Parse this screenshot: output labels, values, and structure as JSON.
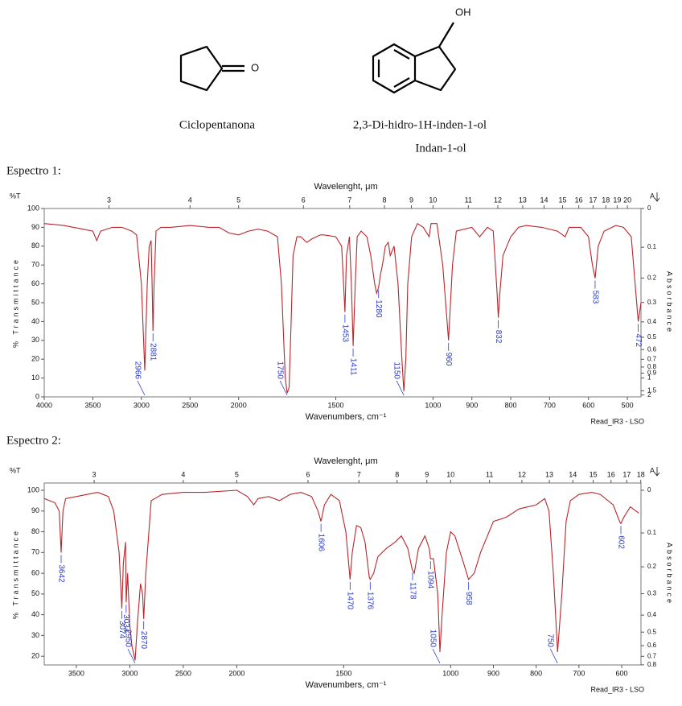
{
  "compounds": [
    {
      "name": "Ciclopentanona",
      "atoms": [
        "O"
      ]
    },
    {
      "name": "2,3-Di-hidro-1H-inden-1-ol",
      "alt_name": "Indan-1-ol",
      "atoms": [
        "OH"
      ]
    }
  ],
  "chart_data": [
    {
      "type": "line",
      "title": "Espectro 1:",
      "x2_label": "Wavelenght, μm",
      "x_label": "Wavenumbers, cm⁻¹",
      "y_label": "% Transmittance",
      "y_unit": "%T",
      "y2_label": "Absorbance",
      "y2_unit": "A",
      "footer": "Read_IR3 - LSO",
      "xlim": [
        4000,
        465
      ],
      "xscale_breaks": [
        2000,
        1000
      ],
      "xticks": [
        4000,
        3500,
        3000,
        2500,
        2000,
        1500,
        1000,
        900,
        800,
        700,
        600,
        500
      ],
      "x2ticks": [
        3,
        4,
        5,
        6,
        7,
        8,
        9,
        10,
        11,
        12,
        13,
        14,
        15,
        16,
        17,
        18,
        19,
        20
      ],
      "ylim": [
        0,
        100
      ],
      "yticks": [
        0,
        10,
        20,
        30,
        40,
        50,
        60,
        70,
        80,
        90,
        100
      ],
      "y2ticks": [
        0,
        0.1,
        0.2,
        0.3,
        0.4,
        0.5,
        0.6,
        0.7,
        0.8,
        0.9,
        1,
        1.5,
        2
      ],
      "x": [
        4000,
        3800,
        3600,
        3500,
        3460,
        3420,
        3300,
        3200,
        3100,
        3050,
        3000,
        2966,
        2940,
        2920,
        2900,
        2890,
        2881,
        2870,
        2850,
        2800,
        2700,
        2500,
        2300,
        2200,
        2100,
        2000,
        1950,
        1900,
        1850,
        1800,
        1780,
        1760,
        1750,
        1740,
        1730,
        1720,
        1700,
        1680,
        1650,
        1620,
        1580,
        1560,
        1500,
        1470,
        1460,
        1453,
        1445,
        1430,
        1420,
        1411,
        1400,
        1390,
        1370,
        1340,
        1320,
        1300,
        1290,
        1280,
        1270,
        1260,
        1245,
        1230,
        1220,
        1200,
        1180,
        1160,
        1150,
        1140,
        1130,
        1110,
        1080,
        1050,
        1020,
        1010,
        990,
        975,
        960,
        950,
        940,
        900,
        880,
        860,
        845,
        835,
        832,
        828,
        820,
        810,
        800,
        780,
        760,
        720,
        680,
        660,
        650,
        620,
        600,
        590,
        583,
        575,
        560,
        530,
        510,
        490,
        480,
        472,
        465
      ],
      "series": [
        {
          "color": "#b8262b",
          "values": [
            92,
            91,
            89,
            88,
            83,
            88,
            90,
            90,
            88,
            86,
            60,
            14,
            60,
            80,
            83,
            60,
            35,
            60,
            88,
            90,
            90,
            91,
            90,
            90,
            87,
            86,
            88,
            89,
            88,
            85,
            60,
            10,
            2,
            5,
            40,
            75,
            85,
            85,
            82,
            84,
            86,
            86,
            85,
            80,
            60,
            45,
            75,
            85,
            60,
            27,
            60,
            85,
            88,
            85,
            75,
            60,
            55,
            58,
            65,
            70,
            80,
            82,
            75,
            80,
            60,
            20,
            3,
            20,
            60,
            85,
            92,
            90,
            85,
            92,
            92,
            70,
            30,
            70,
            88,
            90,
            85,
            90,
            88,
            55,
            42,
            55,
            75,
            80,
            85,
            90,
            91,
            90,
            88,
            85,
            90,
            90,
            85,
            70,
            63,
            80,
            88,
            91,
            90,
            85,
            60,
            40,
            50
          ]
        }
      ],
      "peaks": [
        2966,
        2881,
        1750,
        1453,
        1411,
        1280,
        1150,
        960,
        832,
        583,
        472
      ]
    },
    {
      "type": "line",
      "title": "Espectro 2:",
      "x2_label": "Wavelenght, μm",
      "x_label": "Wavenumbers, cm⁻¹",
      "y_label": "% Transmittance",
      "y_unit": "%T",
      "y2_label": "Absorbance",
      "y2_unit": "A",
      "footer": "Read_IR3 - LSO",
      "xlim": [
        3800,
        555
      ],
      "xscale_breaks": [
        2000,
        1000
      ],
      "xticks": [
        3500,
        3000,
        2500,
        2000,
        1500,
        1000,
        900,
        800,
        700,
        600
      ],
      "x2ticks": [
        3,
        4,
        5,
        6,
        7,
        8,
        9,
        10,
        11,
        12,
        13,
        14,
        15,
        16,
        17,
        18
      ],
      "ylim": [
        15.8,
        103.5
      ],
      "yticks": [
        20,
        30,
        40,
        50,
        60,
        70,
        80,
        90,
        100
      ],
      "y2ticks": [
        0,
        0.1,
        0.2,
        0.3,
        0.4,
        0.5,
        0.6,
        0.7,
        0.8
      ],
      "x": [
        3800,
        3750,
        3700,
        3660,
        3642,
        3625,
        3600,
        3500,
        3400,
        3300,
        3200,
        3150,
        3100,
        3074,
        3060,
        3040,
        3034,
        3020,
        3000,
        2980,
        2950,
        2930,
        2900,
        2880,
        2870,
        2850,
        2800,
        2700,
        2500,
        2300,
        2000,
        1950,
        1920,
        1900,
        1850,
        1800,
        1750,
        1700,
        1650,
        1620,
        1606,
        1590,
        1560,
        1520,
        1490,
        1470,
        1460,
        1440,
        1420,
        1400,
        1380,
        1376,
        1360,
        1340,
        1300,
        1260,
        1230,
        1200,
        1180,
        1170,
        1150,
        1120,
        1100,
        1094,
        1080,
        1060,
        1050,
        1040,
        1020,
        1000,
        990,
        970,
        958,
        945,
        930,
        900,
        870,
        840,
        800,
        780,
        770,
        760,
        750,
        740,
        730,
        720,
        700,
        670,
        650,
        620,
        605,
        602,
        595,
        580,
        560
      ],
      "series": [
        {
          "color": "#b8262b",
          "values": [
            96,
            95,
            94,
            90,
            70,
            90,
            96,
            97,
            98,
            99,
            97,
            90,
            70,
            43,
            65,
            75,
            46,
            60,
            35,
            25,
            18,
            35,
            55,
            50,
            38,
            60,
            95,
            98,
            99,
            99,
            100,
            97,
            93,
            96,
            97,
            95,
            98,
            99,
            97,
            90,
            85,
            93,
            98,
            95,
            80,
            57,
            70,
            83,
            82,
            75,
            58,
            57,
            60,
            68,
            72,
            75,
            78,
            72,
            62,
            60,
            72,
            78,
            72,
            67,
            67,
            50,
            22,
            40,
            70,
            80,
            78,
            65,
            57,
            60,
            70,
            85,
            87,
            91,
            93,
            96,
            90,
            60,
            22,
            50,
            85,
            95,
            98,
            99,
            98,
            93,
            85,
            84,
            87,
            92,
            89
          ]
        }
      ],
      "peaks": [
        3642,
        3074,
        3034,
        2870,
        2950,
        1606,
        1470,
        1376,
        1178,
        1094,
        1050,
        958,
        750,
        602
      ]
    }
  ]
}
